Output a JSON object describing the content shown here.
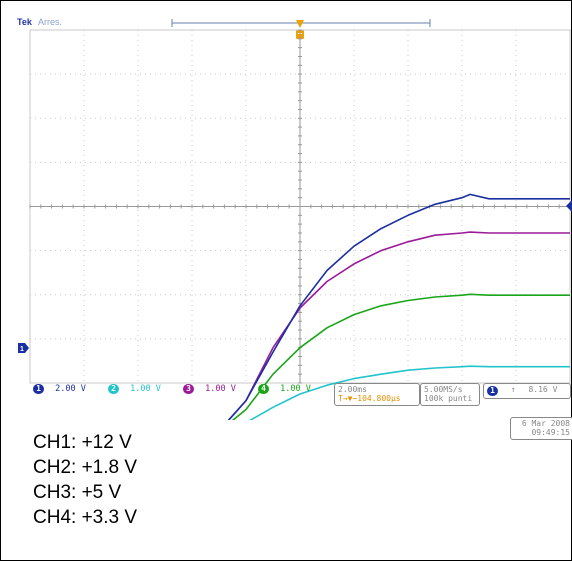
{
  "header": {
    "brand": "Tek",
    "mode": "Arres."
  },
  "markers": {
    "trigger_marker": "T",
    "ground_marker_ch1": "1"
  },
  "readouts": {
    "ch1": {
      "badge": "1",
      "scale": "2.00 V",
      "color": "#1a2fa0"
    },
    "ch2": {
      "badge": "2",
      "scale": "1.00 V",
      "color": "#22c4cc"
    },
    "ch3": {
      "badge": "3",
      "scale": "1.00 V",
      "color": "#9a1a9a"
    },
    "ch4": {
      "badge": "4",
      "scale": "1.00 V",
      "color": "#1aa51a"
    },
    "timebase": "2.00ms",
    "trigger_pos": "T→▼−104.800µs",
    "sample_rate": "5.00MS/s",
    "record_length": "100k punti",
    "trigger_badge": "1",
    "trigger_slope": "↑",
    "trigger_level": "8.16 V",
    "date": "6 Mar 2008",
    "time": "09:49:15"
  },
  "chart_data": {
    "type": "line",
    "xlabel": "",
    "ylabel": "",
    "x_unit": "ms",
    "x_divisions": 10,
    "y_divisions": 8,
    "grid": true,
    "x": [
      -12,
      -10,
      -8,
      -6,
      -4.8,
      -4,
      -3,
      -2,
      -1,
      0,
      1,
      2,
      3,
      4,
      4.3,
      5,
      6,
      7,
      8
    ],
    "series": [
      {
        "name": "1",
        "color": "#1a2fa0",
        "values": [
          0,
          0,
          0,
          0,
          0.1,
          1.2,
          3.4,
          5.5,
          7.1,
          8.2,
          9.0,
          9.6,
          10.1,
          10.4,
          10.55,
          10.35,
          10.35,
          10.35,
          10.35
        ]
      },
      {
        "name": "2",
        "color": "#22c4cc",
        "values": [
          0,
          0,
          0,
          0,
          0,
          0.1,
          0.45,
          0.75,
          0.95,
          1.1,
          1.2,
          1.29,
          1.34,
          1.37,
          1.38,
          1.37,
          1.37,
          1.37,
          1.37
        ]
      },
      {
        "name": "3",
        "color": "#9a1a9a",
        "values": [
          0,
          0,
          0,
          0,
          0.05,
          0.6,
          1.8,
          2.7,
          3.3,
          3.7,
          4.0,
          4.2,
          4.35,
          4.4,
          4.42,
          4.4,
          4.4,
          4.4,
          4.4
        ]
      },
      {
        "name": "4",
        "color": "#1aa51a",
        "values": [
          0,
          0,
          0,
          0,
          0,
          0.4,
          1.2,
          1.8,
          2.25,
          2.55,
          2.75,
          2.87,
          2.95,
          2.99,
          3.01,
          2.99,
          2.99,
          2.99,
          2.99
        ]
      }
    ],
    "volts_per_div": [
      2.0,
      1.0,
      1.0,
      1.0
    ],
    "ground_div_below_center": 5
  },
  "legend": [
    "CH1: +12 V",
    "CH2: +1.8 V",
    "CH3: +5 V",
    "CH4: +3.3 V"
  ]
}
